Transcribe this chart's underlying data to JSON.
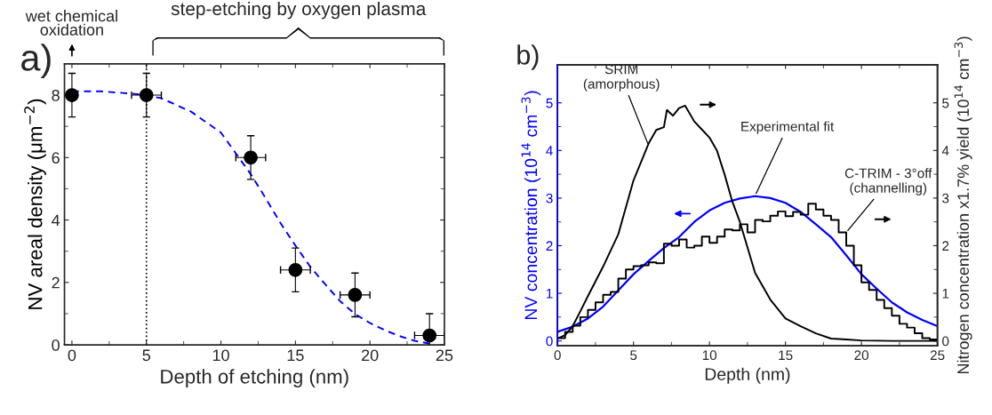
{
  "chart_data": [
    {
      "type": "scatter",
      "xlabel": "Depth of etching (nm)",
      "ylabel": "NV areal density (μm$^{−2}$)",
      "xlim": [
        -0.5,
        25
      ],
      "xticks": [
        0,
        5,
        10,
        15,
        20,
        25
      ],
      "ylim": [
        0,
        9
      ],
      "yticks": [
        0,
        2,
        4,
        6,
        8
      ],
      "series": [
        {
          "color": "#000000",
          "marker": "circle",
          "x": [
            0,
            5,
            12,
            15,
            19,
            24
          ],
          "values": [
            8,
            8,
            6,
            2.4,
            1.6,
            0.3
          ],
          "errors": [
            0.7,
            0.7,
            0.7,
            0.7,
            0.7,
            0.7
          ],
          "xerrors": [
            null,
            1,
            1,
            1,
            1,
            1
          ]
        },
        {
          "type": "line",
          "color": "#0000ff",
          "line_style": "dashed",
          "x": [
            0,
            2,
            4,
            5,
            6,
            8,
            10,
            12,
            13,
            14,
            15,
            16,
            17,
            18,
            19,
            20,
            21,
            22,
            23,
            24
          ],
          "values": [
            8.12,
            8.12,
            8.05,
            8.0,
            7.9,
            7.47,
            6.8,
            5.47,
            4.7,
            3.9,
            3.18,
            2.5,
            1.94,
            1.4,
            0.99,
            0.7,
            0.47,
            0.28,
            0.13,
            0.04
          ]
        }
      ],
      "ref_lines": [
        {
          "axis": "x",
          "value": 5,
          "color": "#000000",
          "line_style": "dotted"
        }
      ],
      "annotations": [
        "a)",
        "wet chemical\noxidation",
        "step-etching by oxygen plasma"
      ]
    },
    {
      "type": "line",
      "xlabel": "Depth (nm)",
      "ylabel": "NV concentration (10$^{14}$ cm$^{−3}$)",
      "y2label": "Nitrogen concentration x1.7% yield (10$^{14}$ cm$^{−3}$)",
      "xlim": [
        0,
        25
      ],
      "xticks": [
        0,
        5,
        10,
        15,
        20,
        25
      ],
      "ylim": [
        -0.1,
        5.8
      ],
      "yticks": [
        0,
        1,
        2,
        3,
        4,
        5
      ],
      "y2lim": [
        -0.1,
        5.8
      ],
      "y2ticks": [
        0,
        1,
        2,
        3,
        4,
        5
      ],
      "series": [
        {
          "color": "#000000",
          "axis": "y2",
          "x": [
            0,
            0.5,
            1,
            1.5,
            2,
            3,
            4,
            5,
            6,
            6.5,
            7,
            7.2,
            7.6,
            8,
            8.4,
            9,
            9.5,
            10,
            10.5,
            11,
            11.5,
            12,
            13,
            14,
            15,
            16,
            17,
            18,
            19,
            20,
            22,
            25
          ],
          "values": [
            0.05,
            0.12,
            0.31,
            0.62,
            0.94,
            1.56,
            2.24,
            3.37,
            4.15,
            4.43,
            4.49,
            4.85,
            4.73,
            4.89,
            4.94,
            4.61,
            4.44,
            4.27,
            3.99,
            3.49,
            2.93,
            2.5,
            1.43,
            0.87,
            0.47,
            0.31,
            0.16,
            0.05,
            0.03,
            0.01,
            0,
            0
          ]
        },
        {
          "type": "step",
          "color": "#000000",
          "axis": "y2",
          "x": [
            0,
            0.5,
            1,
            1.5,
            2,
            2.5,
            3,
            3.5,
            4,
            4.5,
            5,
            5.5,
            6,
            6.5,
            7,
            7.5,
            8,
            8.5,
            9,
            9.5,
            10,
            10.5,
            11,
            11.5,
            12,
            12.5,
            13,
            13.5,
            14,
            14.5,
            15,
            15.5,
            16,
            16.5,
            17,
            17.5,
            18,
            18.5,
            19,
            19.5,
            20,
            20.5,
            21,
            21.5,
            22,
            22.5,
            23,
            23.5,
            24,
            24.5,
            25
          ],
          "values": [
            0.06,
            0.19,
            0.32,
            0.5,
            0.65,
            0.81,
            0.97,
            1.03,
            1.31,
            1.5,
            1.57,
            1.59,
            1.65,
            1.63,
            2.04,
            2.0,
            2.13,
            1.96,
            2.0,
            2.19,
            2.06,
            2.19,
            2.34,
            2.32,
            2.45,
            2.28,
            2.54,
            2.51,
            2.63,
            2.72,
            2.62,
            2.71,
            2.65,
            2.88,
            2.76,
            2.63,
            2.54,
            2.28,
            2.0,
            1.59,
            1.23,
            1.07,
            0.86,
            0.69,
            0.53,
            0.36,
            0.28,
            0.16,
            0.06,
            0.03,
            0.03
          ]
        },
        {
          "color": "#0000ff",
          "x": [
            0,
            1,
            2,
            3,
            4,
            5,
            6,
            7,
            8,
            9,
            10,
            11,
            12,
            13,
            14,
            15,
            16,
            17,
            18,
            19,
            20,
            21,
            22,
            23,
            24,
            25
          ],
          "values": [
            0.19,
            0.3,
            0.47,
            0.72,
            1.06,
            1.4,
            1.68,
            1.95,
            2.18,
            2.5,
            2.74,
            2.9,
            2.99,
            3.04,
            3.0,
            2.9,
            2.71,
            2.45,
            2.18,
            1.8,
            1.4,
            1.1,
            0.81,
            0.6,
            0.44,
            0.31
          ]
        }
      ],
      "annotations": [
        "b)",
        {
          "text": "SRIM\n(amorphous)",
          "x": 6,
          "y": 4.1
        },
        {
          "text": "Experimental fit",
          "x": 13,
          "y": 3.05
        },
        {
          "text": "C-TRIM - 3°off\n(channelling)",
          "x": 19,
          "y": 2.28
        }
      ]
    }
  ]
}
